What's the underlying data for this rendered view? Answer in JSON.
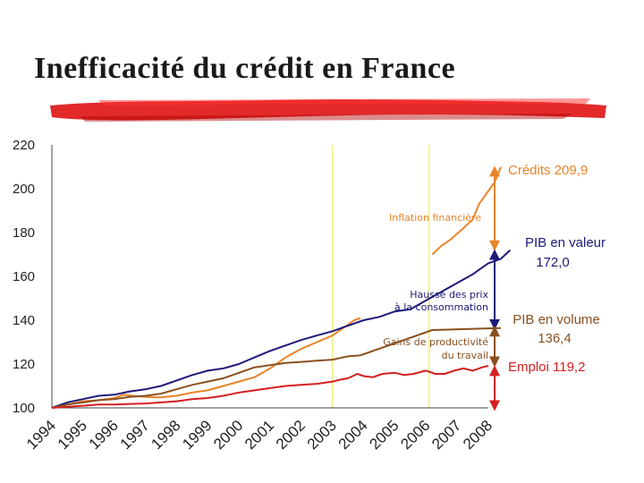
{
  "title": "Inefficacité du crédit en France",
  "chart_data": {
    "type": "line",
    "x": [
      1994,
      1995,
      1996,
      1997,
      1998,
      1999,
      2000,
      2001,
      2002,
      2003,
      2004,
      2005,
      2006,
      2007,
      2008
    ],
    "ylim": [
      100,
      220
    ],
    "yticks": [
      100,
      120,
      140,
      160,
      180,
      200,
      220
    ],
    "xticks": [
      "1994",
      "1995",
      "1996",
      "1997",
      "1998",
      "1999",
      "2000",
      "2001",
      "2002",
      "2003",
      "2004",
      "2005",
      "2006",
      "2007",
      "2008"
    ],
    "grid": false,
    "highlight_years": [
      2003.0,
      2006.1
    ],
    "series": [
      {
        "key": "credits",
        "color": "#e8842a",
        "points": [
          [
            1994,
            100
          ],
          [
            1994.5,
            101.5
          ],
          [
            1995,
            103
          ],
          [
            1995.5,
            103.5
          ],
          [
            1996,
            104.5
          ],
          [
            1996.3,
            106
          ],
          [
            1996.6,
            105.5
          ],
          [
            1997,
            105
          ],
          [
            1997.5,
            104.8
          ],
          [
            1998,
            105.5
          ],
          [
            1998.5,
            107
          ],
          [
            1999,
            108
          ],
          [
            1999.5,
            110
          ],
          [
            2000,
            112
          ],
          [
            2000.5,
            114
          ],
          [
            2001,
            118
          ],
          [
            2001.5,
            123
          ],
          [
            2002,
            127
          ],
          [
            2002.5,
            130
          ],
          [
            2003,
            133
          ],
          [
            2003.3,
            136
          ],
          [
            2003.7,
            140
          ],
          [
            2003.9,
            141
          ],
          [
            2006.2,
            170
          ],
          [
            2006.5,
            174
          ],
          [
            2006.8,
            177
          ],
          [
            2007.2,
            182
          ],
          [
            2007.5,
            186
          ],
          [
            2007.7,
            193
          ],
          [
            2008,
            199
          ],
          [
            2008.2,
            203
          ],
          [
            2008.4,
            209.9
          ]
        ]
      },
      {
        "key": "pib_valeur",
        "color": "#1e1a78",
        "points": [
          [
            1994,
            100
          ],
          [
            1994.5,
            102.5
          ],
          [
            1995,
            104
          ],
          [
            1995.5,
            105.5
          ],
          [
            1996,
            106
          ],
          [
            1996.5,
            107.5
          ],
          [
            1997,
            108.5
          ],
          [
            1997.5,
            110
          ],
          [
            1998,
            112.5
          ],
          [
            1998.5,
            115
          ],
          [
            1999,
            117
          ],
          [
            1999.5,
            118
          ],
          [
            2000,
            120
          ],
          [
            2000.5,
            123
          ],
          [
            2001,
            126
          ],
          [
            2001.5,
            128.5
          ],
          [
            2002,
            131
          ],
          [
            2002.5,
            133
          ],
          [
            2003,
            135
          ],
          [
            2003.5,
            137.5
          ],
          [
            2004,
            140
          ],
          [
            2004.5,
            141.5
          ],
          [
            2005,
            144
          ],
          [
            2005.5,
            145
          ],
          [
            2006,
            149
          ],
          [
            2006.5,
            153
          ],
          [
            2007,
            157
          ],
          [
            2007.5,
            161
          ],
          [
            2008,
            166
          ],
          [
            2008.4,
            168
          ],
          [
            2008.7,
            172.0
          ]
        ]
      },
      {
        "key": "pib_volume",
        "color": "#8a5020",
        "points": [
          [
            1994,
            100
          ],
          [
            1994.5,
            101.5
          ],
          [
            1995,
            102.5
          ],
          [
            1995.5,
            103.5
          ],
          [
            1996,
            104
          ],
          [
            1996.5,
            105
          ],
          [
            1997,
            105.5
          ],
          [
            1997.5,
            106.5
          ],
          [
            1998,
            108.5
          ],
          [
            1998.5,
            110.5
          ],
          [
            1999,
            112
          ],
          [
            1999.5,
            113.5
          ],
          [
            2000,
            116
          ],
          [
            2000.5,
            118.5
          ],
          [
            2001,
            119.5
          ],
          [
            2001.5,
            120.5
          ],
          [
            2002,
            121
          ],
          [
            2002.5,
            121.5
          ],
          [
            2003,
            122
          ],
          [
            2003.5,
            123.5
          ],
          [
            2003.9,
            124
          ],
          [
            2006.2,
            135.5
          ],
          [
            2008.4,
            136.4
          ]
        ]
      },
      {
        "key": "emploi",
        "color": "#d42020",
        "points": [
          [
            1994,
            100
          ],
          [
            1994.5,
            100.5
          ],
          [
            1995,
            101
          ],
          [
            1995.5,
            101.5
          ],
          [
            1996,
            101.5
          ],
          [
            1996.5,
            101.8
          ],
          [
            1997,
            102
          ],
          [
            1997.5,
            102.5
          ],
          [
            1998,
            103
          ],
          [
            1998.5,
            104
          ],
          [
            1999,
            104.5
          ],
          [
            1999.5,
            105.5
          ],
          [
            2000,
            107
          ],
          [
            2000.5,
            108
          ],
          [
            2001,
            109
          ],
          [
            2001.5,
            110
          ],
          [
            2002,
            110.5
          ],
          [
            2002.5,
            111
          ],
          [
            2003,
            112
          ],
          [
            2003.3,
            113
          ],
          [
            2003.5,
            113.5
          ],
          [
            2003.8,
            115.5
          ],
          [
            2004,
            114.5
          ],
          [
            2004.3,
            114
          ],
          [
            2004.6,
            115.5
          ],
          [
            2005,
            116
          ],
          [
            2005.3,
            115
          ],
          [
            2005.6,
            115.5
          ],
          [
            2006,
            117
          ],
          [
            2006.3,
            115.5
          ],
          [
            2006.6,
            115.5
          ],
          [
            2006.9,
            117
          ],
          [
            2007.2,
            118
          ],
          [
            2007.5,
            117
          ],
          [
            2007.8,
            118.5
          ],
          [
            2008,
            119.2
          ]
        ]
      }
    ],
    "labels": {
      "credits": "Crédits 209,9",
      "pib_valeur_1": "PIB en valeur",
      "pib_valeur_2": "172,0",
      "pib_volume_1": "PIB en volume",
      "pib_volume_2": "136,4",
      "emploi": "Emploi 119,2"
    },
    "annotations": {
      "inflation": "Inflation financière",
      "hausse_1": "Hausse des prix",
      "hausse_2": "à la consommation",
      "gains_1": "Gains de productivité",
      "gains_2": "du travail"
    },
    "annotation_colors": {
      "inflation": "#e8842a",
      "hausse": "#1e1a78",
      "gains": "#8a5020"
    }
  }
}
